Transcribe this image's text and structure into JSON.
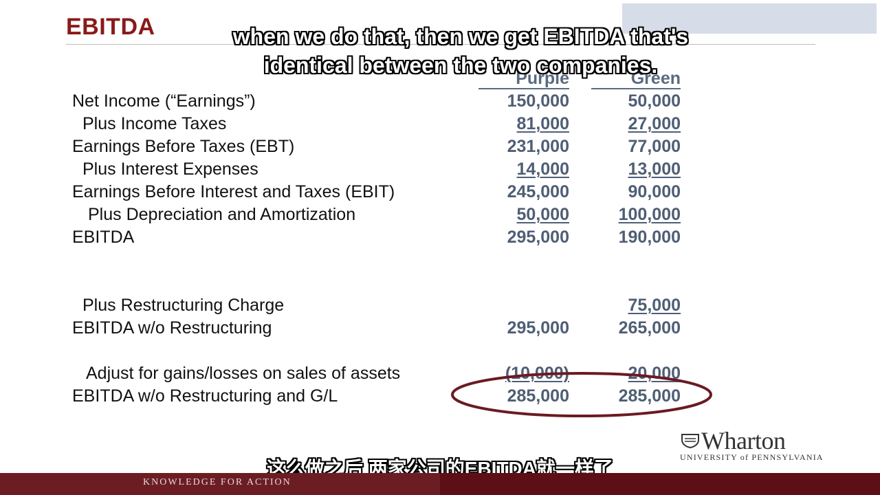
{
  "slide": {
    "title": "EBITDA",
    "footer_text": "Knowledge for Action"
  },
  "subtitles": {
    "english_line1": "when we do that, then we get EBITDA that's",
    "english_line2": "identical between the two companies.",
    "chinese": "这么做之后 两家公司的EBITDA就一样了"
  },
  "table": {
    "columns": [
      "Purple",
      "Green"
    ],
    "rows": [
      {
        "label": "Net Income (“Earnings”)",
        "purple": "150,000",
        "green": "50,000"
      },
      {
        "label": "Plus Income Taxes",
        "purple": "81,000",
        "green": "27,000"
      },
      {
        "label": "Earnings Before Taxes (EBT)",
        "purple": "231,000",
        "green": "77,000"
      },
      {
        "label": "Plus Interest Expenses",
        "purple": "14,000",
        "green": "13,000"
      },
      {
        "label": "Earnings Before Interest and Taxes (EBIT)",
        "purple": "245,000",
        "green": "90,000"
      },
      {
        "label": "Plus Depreciation and Amortization",
        "purple": "50,000",
        "green": "100,000"
      },
      {
        "label": "EBITDA",
        "purple": "295,000",
        "green": "190,000"
      },
      {
        "label": "Plus Restructuring Charge",
        "purple": "",
        "green": "75,000"
      },
      {
        "label": "EBITDA w/o Restructuring",
        "purple": "295,000",
        "green": "265,000"
      },
      {
        "label": "Adjust for gains/losses on sales of assets",
        "purple": "(10,000)",
        "green": "20,000"
      },
      {
        "label": "EBITDA w/o Restructuring and G/L",
        "purple": "285,000",
        "green": "285,000"
      }
    ]
  },
  "logo": {
    "wordmark": "Wharton",
    "tagline": "UNIVERSITY of PENNSYLVANIA"
  },
  "colors": {
    "title": "#8a1a1a",
    "values": "#4f5e75",
    "highlight_ellipse": "#6b1a22",
    "footer": "#5c0f16"
  }
}
